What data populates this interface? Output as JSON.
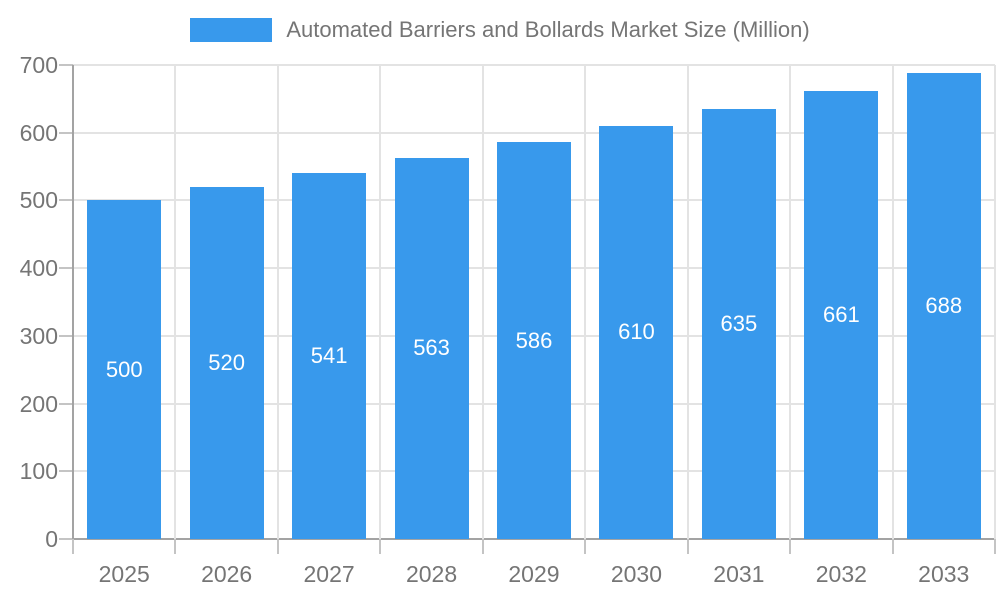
{
  "chart_data": {
    "type": "bar",
    "title": "Automated Barriers and Bollards Market Size (Million)",
    "categories": [
      "2025",
      "2026",
      "2027",
      "2028",
      "2029",
      "2030",
      "2031",
      "2032",
      "2033"
    ],
    "values": [
      500,
      520,
      541,
      563,
      586,
      610,
      635,
      661,
      688
    ],
    "value_labels": [
      "500",
      "520",
      "541",
      "563",
      "586",
      "610",
      "635",
      "661",
      "688"
    ],
    "xlabel": "",
    "ylabel": "",
    "ylim": [
      0,
      700
    ],
    "yticks": [
      0,
      100,
      200,
      300,
      400,
      500,
      600,
      700
    ],
    "grid": true,
    "legend_position": "top",
    "legend_entries": [
      "Automated Barriers and Bollards Market Size (Million)"
    ],
    "colors": {
      "bar": "#3899ec",
      "bar_value_text": "#ffffff",
      "axis_text": "#757575",
      "gridline": "#e3e3e3",
      "axis_line": "#a3a3a3",
      "tick": "#c4c4c4",
      "background": "#ffffff"
    }
  }
}
